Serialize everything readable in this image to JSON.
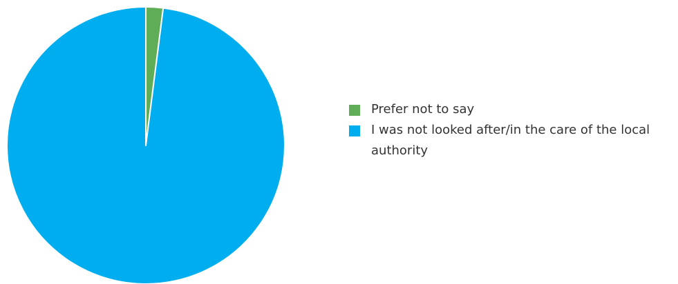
{
  "chart_data": {
    "type": "pie",
    "title": "",
    "categories": [
      "Prefer not to say",
      "I was not looked after/in the care of the local authority"
    ],
    "values": [
      2,
      98
    ],
    "colors": [
      "#5fae57",
      "#00adef"
    ],
    "legend": "right"
  },
  "legend": {
    "items": [
      {
        "label": "Prefer not to say",
        "color": "#5fae57"
      },
      {
        "label": "I was not looked after/in the care of the local authority",
        "color": "#00adef"
      }
    ]
  }
}
